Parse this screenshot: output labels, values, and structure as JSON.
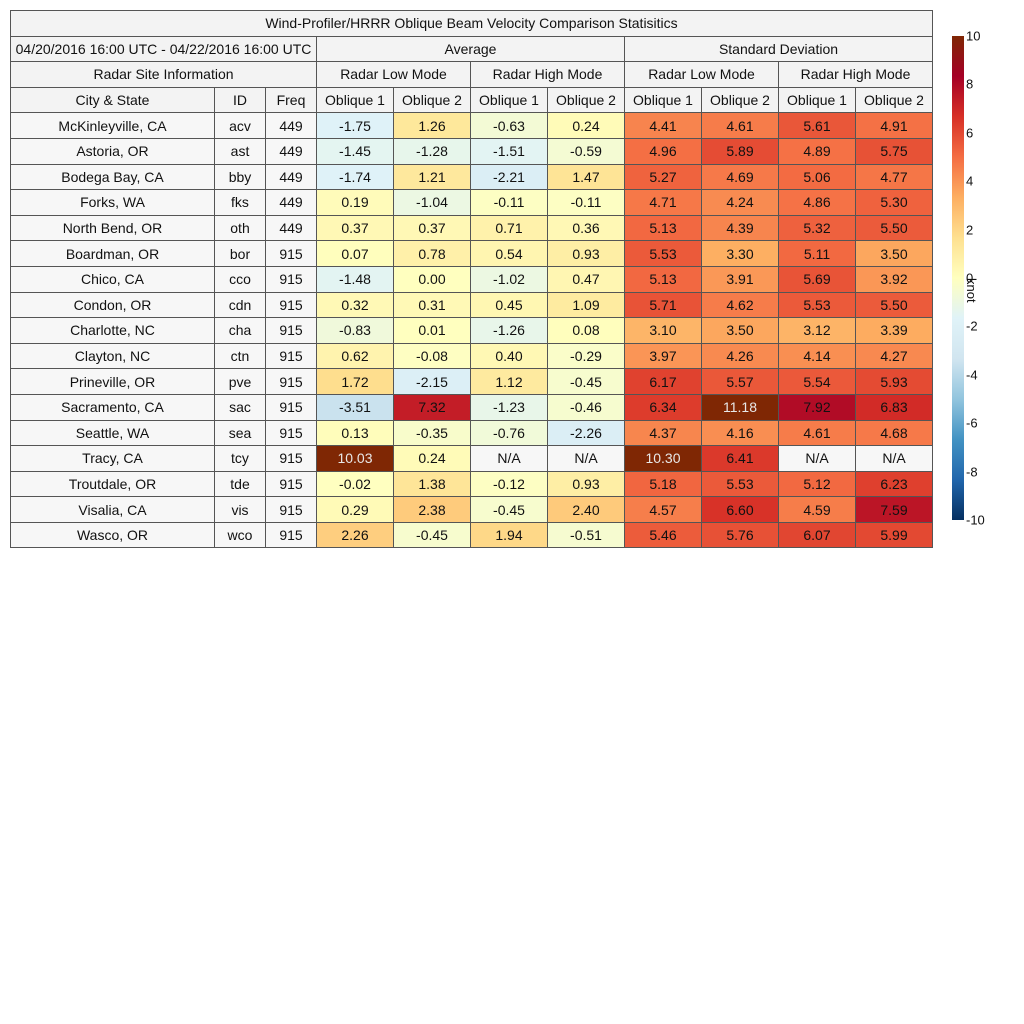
{
  "title": "Wind-Profiler/HRRR Oblique Beam Velocity Comparison Statisitics",
  "period": "04/20/2016 16:00 UTC - 04/22/2016 16:00 UTC",
  "headers": {
    "average": "Average",
    "std": "Standard Deviation",
    "site_info": "Radar Site Information",
    "low_mode": "Radar Low Mode",
    "high_mode": "Radar High Mode",
    "city": "City & State",
    "id": "ID",
    "freq": "Freq",
    "oblique1": "Oblique 1",
    "oblique2": "Oblique 2"
  },
  "colorbar": {
    "unit": "knot",
    "min": -10,
    "max": 10,
    "ticks": [
      "10",
      "8",
      "6",
      "4",
      "2",
      "0",
      "-2",
      "-4",
      "-6",
      "-8",
      "-10"
    ],
    "colors": [
      "#053061",
      "#2166ac",
      "#4393c3",
      "#92c5de",
      "#d1e5f0",
      "#e0f3f8",
      "#ffffbf",
      "#fee090",
      "#fdae61",
      "#f46d43",
      "#d73027",
      "#a50026",
      "#7f2704"
    ]
  },
  "chart_data": {
    "type": "table",
    "title": "Wind-Profiler/HRRR Oblique Beam Velocity Comparison Statisitics",
    "columns": [
      "City & State",
      "ID",
      "Freq",
      "Average Low Oblique 1",
      "Average Low Oblique 2",
      "Average High Oblique 1",
      "Average High Oblique 2",
      "SD Low Oblique 1",
      "SD Low Oblique 2",
      "SD High Oblique 1",
      "SD High Oblique 2"
    ],
    "rows": [
      {
        "city": "McKinleyville, CA",
        "id": "acv",
        "freq": "449",
        "avg": [
          "-1.75",
          "1.26",
          "-0.63",
          "0.24"
        ],
        "std": [
          "4.41",
          "4.61",
          "5.61",
          "4.91"
        ]
      },
      {
        "city": "Astoria, OR",
        "id": "ast",
        "freq": "449",
        "avg": [
          "-1.45",
          "-1.28",
          "-1.51",
          "-0.59"
        ],
        "std": [
          "4.96",
          "5.89",
          "4.89",
          "5.75"
        ]
      },
      {
        "city": "Bodega Bay, CA",
        "id": "bby",
        "freq": "449",
        "avg": [
          "-1.74",
          "1.21",
          "-2.21",
          "1.47"
        ],
        "std": [
          "5.27",
          "4.69",
          "5.06",
          "4.77"
        ]
      },
      {
        "city": "Forks, WA",
        "id": "fks",
        "freq": "449",
        "avg": [
          "0.19",
          "-1.04",
          "-0.11",
          "-0.11"
        ],
        "std": [
          "4.71",
          "4.24",
          "4.86",
          "5.30"
        ]
      },
      {
        "city": "North Bend, OR",
        "id": "oth",
        "freq": "449",
        "avg": [
          "0.37",
          "0.37",
          "0.71",
          "0.36"
        ],
        "std": [
          "5.13",
          "4.39",
          "5.32",
          "5.50"
        ]
      },
      {
        "city": "Boardman, OR",
        "id": "bor",
        "freq": "915",
        "avg": [
          "0.07",
          "0.78",
          "0.54",
          "0.93"
        ],
        "std": [
          "5.53",
          "3.30",
          "5.11",
          "3.50"
        ]
      },
      {
        "city": "Chico, CA",
        "id": "cco",
        "freq": "915",
        "avg": [
          "-1.48",
          "0.00",
          "-1.02",
          "0.47"
        ],
        "std": [
          "5.13",
          "3.91",
          "5.69",
          "3.92"
        ]
      },
      {
        "city": "Condon, OR",
        "id": "cdn",
        "freq": "915",
        "avg": [
          "0.32",
          "0.31",
          "0.45",
          "1.09"
        ],
        "std": [
          "5.71",
          "4.62",
          "5.53",
          "5.50"
        ]
      },
      {
        "city": "Charlotte, NC",
        "id": "cha",
        "freq": "915",
        "avg": [
          "-0.83",
          "0.01",
          "-1.26",
          "0.08"
        ],
        "std": [
          "3.10",
          "3.50",
          "3.12",
          "3.39"
        ]
      },
      {
        "city": "Clayton, NC",
        "id": "ctn",
        "freq": "915",
        "avg": [
          "0.62",
          "-0.08",
          "0.40",
          "-0.29"
        ],
        "std": [
          "3.97",
          "4.26",
          "4.14",
          "4.27"
        ]
      },
      {
        "city": "Prineville, OR",
        "id": "pve",
        "freq": "915",
        "avg": [
          "1.72",
          "-2.15",
          "1.12",
          "-0.45"
        ],
        "std": [
          "6.17",
          "5.57",
          "5.54",
          "5.93"
        ]
      },
      {
        "city": "Sacramento, CA",
        "id": "sac",
        "freq": "915",
        "avg": [
          "-3.51",
          "7.32",
          "-1.23",
          "-0.46"
        ],
        "std": [
          "6.34",
          "11.18",
          "7.92",
          "6.83"
        ]
      },
      {
        "city": "Seattle, WA",
        "id": "sea",
        "freq": "915",
        "avg": [
          "0.13",
          "-0.35",
          "-0.76",
          "-2.26"
        ],
        "std": [
          "4.37",
          "4.16",
          "4.61",
          "4.68"
        ]
      },
      {
        "city": "Tracy, CA",
        "id": "tcy",
        "freq": "915",
        "avg": [
          "10.03",
          "0.24",
          "N/A",
          "N/A"
        ],
        "std": [
          "10.30",
          "6.41",
          "N/A",
          "N/A"
        ]
      },
      {
        "city": "Troutdale, OR",
        "id": "tde",
        "freq": "915",
        "avg": [
          "-0.02",
          "1.38",
          "-0.12",
          "0.93"
        ],
        "std": [
          "5.18",
          "5.53",
          "5.12",
          "6.23"
        ]
      },
      {
        "city": "Visalia, CA",
        "id": "vis",
        "freq": "915",
        "avg": [
          "0.29",
          "2.38",
          "-0.45",
          "2.40"
        ],
        "std": [
          "4.57",
          "6.60",
          "4.59",
          "7.59"
        ]
      },
      {
        "city": "Wasco, OR",
        "id": "wco",
        "freq": "915",
        "avg": [
          "2.26",
          "-0.45",
          "1.94",
          "-0.51"
        ],
        "std": [
          "5.46",
          "5.76",
          "6.07",
          "5.99"
        ]
      }
    ]
  }
}
